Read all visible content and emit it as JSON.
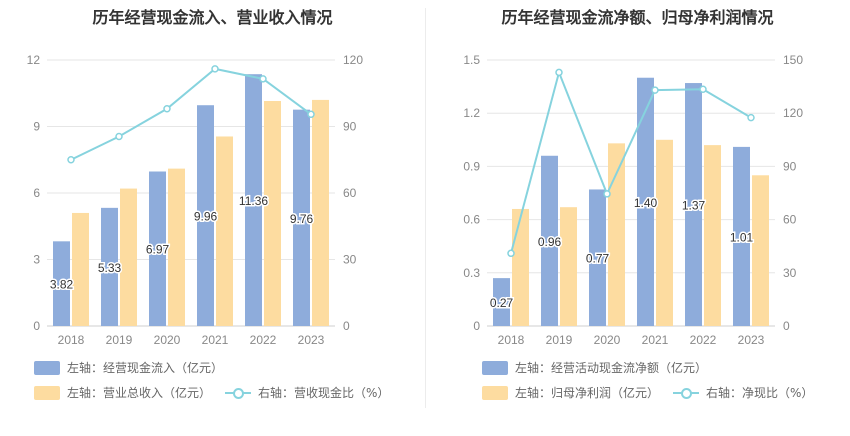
{
  "chart_data": [
    {
      "type": "bar+line",
      "title": "历年经营现金流入、营业收入情况",
      "categories": [
        "2018",
        "2019",
        "2020",
        "2021",
        "2022",
        "2023"
      ],
      "left_axis": {
        "ticks": [
          "0",
          "3",
          "6",
          "9",
          "12"
        ],
        "ylim": [
          0,
          12
        ]
      },
      "right_axis": {
        "ticks": [
          "0",
          "30",
          "60",
          "90",
          "120"
        ],
        "ylim": [
          0,
          120
        ]
      },
      "series": [
        {
          "name": "左轴：经营现金流入（亿元）",
          "type": "bar",
          "axis": "left",
          "color": "#8eacdb",
          "values": [
            3.82,
            5.33,
            6.97,
            9.96,
            11.36,
            9.76
          ],
          "labels": [
            "3.82",
            "5.33",
            "6.97",
            "9.96",
            "11.36",
            "9.76"
          ]
        },
        {
          "name": "左轴：营业总收入（亿元）",
          "type": "bar",
          "axis": "left",
          "color": "#fddca0",
          "values": [
            5.1,
            6.2,
            7.1,
            8.55,
            10.15,
            10.2
          ]
        },
        {
          "name": "右轴：营收现金比（%）",
          "type": "line",
          "axis": "right",
          "color": "#86d3de",
          "values": [
            75,
            85.5,
            98,
            116,
            111.5,
            95.5
          ]
        }
      ],
      "grid": true,
      "legend_position": "bottom"
    },
    {
      "type": "bar+line",
      "title": "历年经营现金流净额、归母净利润情况",
      "categories": [
        "2018",
        "2019",
        "2020",
        "2021",
        "2022",
        "2023"
      ],
      "left_axis": {
        "ticks": [
          "0",
          "0.3",
          "0.6",
          "0.9",
          "1.2",
          "1.5"
        ],
        "ylim": [
          0,
          1.5
        ]
      },
      "right_axis": {
        "ticks": [
          "0",
          "30",
          "60",
          "90",
          "120",
          "150"
        ],
        "ylim": [
          0,
          150
        ]
      },
      "series": [
        {
          "name": "左轴：经营活动现金流净额（亿元）",
          "type": "bar",
          "axis": "left",
          "color": "#8eacdb",
          "values": [
            0.27,
            0.96,
            0.77,
            1.4,
            1.37,
            1.01
          ],
          "labels": [
            "0.27",
            "0.96",
            "0.77",
            "1.40",
            "1.37",
            "1.01"
          ]
        },
        {
          "name": "左轴：归母净利润（亿元）",
          "type": "bar",
          "axis": "left",
          "color": "#fddca0",
          "values": [
            0.66,
            0.67,
            1.03,
            1.05,
            1.02,
            0.85
          ]
        },
        {
          "name": "右轴：净现比（%）",
          "type": "line",
          "axis": "right",
          "color": "#86d3de",
          "values": [
            41,
            143,
            74.5,
            133,
            133.5,
            117.5
          ]
        }
      ],
      "grid": true,
      "legend_position": "bottom"
    }
  ]
}
